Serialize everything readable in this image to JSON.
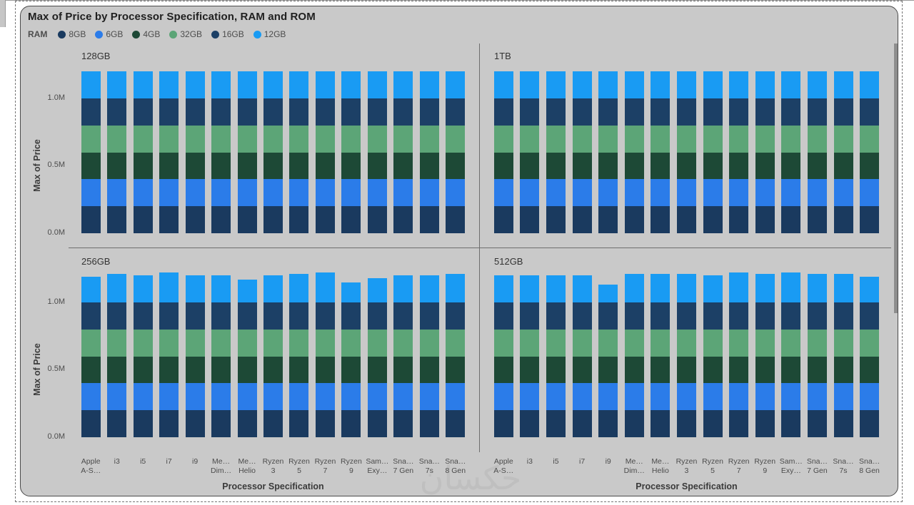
{
  "visual": {
    "title": "Max of Price by Processor Specification, RAM and ROM",
    "legend": {
      "title": "RAM",
      "items": [
        {
          "label": "8GB",
          "color": "#1A3A5F"
        },
        {
          "label": "6GB",
          "color": "#2B7CE9"
        },
        {
          "label": "4GB",
          "color": "#1D4936"
        },
        {
          "label": "32GB",
          "color": "#5CA577"
        },
        {
          "label": "16GB",
          "color": "#1C4066"
        },
        {
          "label": "12GB",
          "color": "#199BF3"
        }
      ]
    },
    "y_axis_title": "Max of Price",
    "x_axis_title": "Processor Specification",
    "y_ticks": [
      "1.0M",
      "0.5M",
      "0.0M"
    ]
  },
  "chart_data": {
    "type": "bar",
    "stacked": true,
    "legend_position": "top",
    "grid": false,
    "units": "M",
    "ylim": [
      0,
      1.25
    ],
    "small_multiples": [
      "128GB",
      "1TB",
      "256GB",
      "512GB"
    ],
    "categories_line1": [
      "Apple",
      "i3",
      "i5",
      "i7",
      "i9",
      "Me…",
      "Me…",
      "Ryzen",
      "Ryzen",
      "Ryzen",
      "Ryzen",
      "Sam…",
      "Sna…",
      "Sna…",
      "Sna…"
    ],
    "categories_line2": [
      "A-S…",
      "",
      "",
      "",
      "",
      "Dim…",
      "Helio",
      "3",
      "5",
      "7",
      "9",
      "Exy…",
      "7 Gen",
      "7s",
      "8 Gen"
    ],
    "series_order_bottom_to_top": [
      "8GB",
      "6GB",
      "4GB",
      "32GB",
      "16GB",
      "12GB"
    ],
    "panels": [
      {
        "name": "128GB",
        "series": {
          "8GB": [
            0.2,
            0.2,
            0.2,
            0.2,
            0.2,
            0.2,
            0.2,
            0.2,
            0.2,
            0.2,
            0.2,
            0.2,
            0.2,
            0.2,
            0.2
          ],
          "6GB": [
            0.2,
            0.2,
            0.2,
            0.2,
            0.2,
            0.2,
            0.2,
            0.2,
            0.2,
            0.2,
            0.2,
            0.2,
            0.2,
            0.2,
            0.2
          ],
          "4GB": [
            0.2,
            0.2,
            0.2,
            0.2,
            0.2,
            0.2,
            0.2,
            0.2,
            0.2,
            0.2,
            0.2,
            0.2,
            0.2,
            0.2,
            0.2
          ],
          "32GB": [
            0.2,
            0.2,
            0.2,
            0.2,
            0.2,
            0.2,
            0.2,
            0.2,
            0.2,
            0.2,
            0.2,
            0.2,
            0.2,
            0.2,
            0.2
          ],
          "16GB": [
            0.2,
            0.2,
            0.2,
            0.2,
            0.2,
            0.2,
            0.2,
            0.2,
            0.2,
            0.2,
            0.2,
            0.2,
            0.2,
            0.2,
            0.2
          ],
          "12GB": [
            0.2,
            0.2,
            0.2,
            0.2,
            0.2,
            0.2,
            0.2,
            0.2,
            0.2,
            0.2,
            0.2,
            0.2,
            0.2,
            0.2,
            0.2
          ]
        }
      },
      {
        "name": "1TB",
        "series": {
          "8GB": [
            0.2,
            0.2,
            0.2,
            0.2,
            0.2,
            0.2,
            0.2,
            0.2,
            0.2,
            0.2,
            0.2,
            0.2,
            0.2,
            0.2,
            0.2
          ],
          "6GB": [
            0.2,
            0.2,
            0.2,
            0.2,
            0.2,
            0.2,
            0.2,
            0.2,
            0.2,
            0.2,
            0.2,
            0.2,
            0.2,
            0.2,
            0.2
          ],
          "4GB": [
            0.2,
            0.2,
            0.2,
            0.2,
            0.2,
            0.2,
            0.2,
            0.2,
            0.2,
            0.2,
            0.2,
            0.2,
            0.2,
            0.2,
            0.2
          ],
          "32GB": [
            0.2,
            0.2,
            0.2,
            0.2,
            0.2,
            0.2,
            0.2,
            0.2,
            0.2,
            0.2,
            0.2,
            0.2,
            0.2,
            0.2,
            0.2
          ],
          "16GB": [
            0.2,
            0.2,
            0.2,
            0.2,
            0.2,
            0.2,
            0.2,
            0.2,
            0.2,
            0.2,
            0.2,
            0.2,
            0.2,
            0.2,
            0.2
          ],
          "12GB": [
            0.2,
            0.2,
            0.2,
            0.2,
            0.2,
            0.2,
            0.2,
            0.2,
            0.2,
            0.2,
            0.2,
            0.2,
            0.2,
            0.2,
            0.2
          ]
        }
      },
      {
        "name": "256GB",
        "series": {
          "8GB": [
            0.2,
            0.2,
            0.2,
            0.2,
            0.2,
            0.2,
            0.2,
            0.2,
            0.2,
            0.2,
            0.2,
            0.2,
            0.2,
            0.2,
            0.2
          ],
          "6GB": [
            0.2,
            0.2,
            0.2,
            0.2,
            0.2,
            0.2,
            0.2,
            0.2,
            0.2,
            0.2,
            0.2,
            0.2,
            0.2,
            0.2,
            0.2
          ],
          "4GB": [
            0.2,
            0.2,
            0.2,
            0.2,
            0.2,
            0.2,
            0.2,
            0.2,
            0.2,
            0.2,
            0.2,
            0.2,
            0.2,
            0.2,
            0.2
          ],
          "32GB": [
            0.2,
            0.2,
            0.2,
            0.2,
            0.2,
            0.2,
            0.2,
            0.2,
            0.2,
            0.2,
            0.2,
            0.2,
            0.2,
            0.2,
            0.2
          ],
          "16GB": [
            0.2,
            0.2,
            0.2,
            0.2,
            0.2,
            0.2,
            0.2,
            0.2,
            0.2,
            0.2,
            0.2,
            0.2,
            0.2,
            0.2,
            0.2
          ],
          "12GB": [
            0.19,
            0.21,
            0.2,
            0.22,
            0.2,
            0.2,
            0.17,
            0.2,
            0.21,
            0.22,
            0.15,
            0.18,
            0.2,
            0.2,
            0.21
          ]
        }
      },
      {
        "name": "512GB",
        "series": {
          "8GB": [
            0.2,
            0.2,
            0.2,
            0.2,
            0.2,
            0.2,
            0.2,
            0.2,
            0.2,
            0.2,
            0.2,
            0.2,
            0.2,
            0.2,
            0.2
          ],
          "6GB": [
            0.2,
            0.2,
            0.2,
            0.2,
            0.2,
            0.2,
            0.2,
            0.2,
            0.2,
            0.2,
            0.2,
            0.2,
            0.2,
            0.2,
            0.2
          ],
          "4GB": [
            0.2,
            0.2,
            0.2,
            0.2,
            0.2,
            0.2,
            0.2,
            0.2,
            0.2,
            0.2,
            0.2,
            0.2,
            0.2,
            0.2,
            0.2
          ],
          "32GB": [
            0.2,
            0.2,
            0.2,
            0.2,
            0.2,
            0.2,
            0.2,
            0.2,
            0.2,
            0.2,
            0.2,
            0.2,
            0.2,
            0.2,
            0.2
          ],
          "16GB": [
            0.2,
            0.2,
            0.2,
            0.2,
            0.2,
            0.2,
            0.2,
            0.2,
            0.2,
            0.2,
            0.2,
            0.2,
            0.2,
            0.2,
            0.2
          ],
          "12GB": [
            0.2,
            0.2,
            0.2,
            0.2,
            0.13,
            0.21,
            0.21,
            0.21,
            0.2,
            0.22,
            0.21,
            0.22,
            0.21,
            0.21,
            0.19
          ]
        }
      }
    ]
  },
  "watermark": "حكسان"
}
